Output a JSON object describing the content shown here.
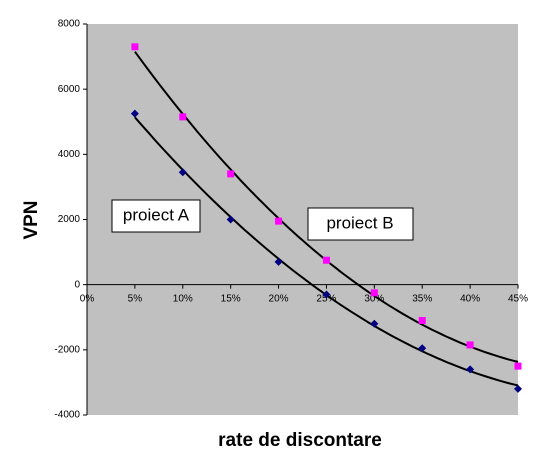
{
  "chart_data": {
    "type": "scatter",
    "xlabel": "rate de discontare",
    "ylabel": "VPN",
    "x": [
      5,
      10,
      15,
      20,
      25,
      30,
      35,
      40,
      45
    ],
    "series": [
      {
        "name": "proiect A",
        "color": "#000080",
        "marker": "diamond",
        "values": [
          5250,
          3450,
          2000,
          700,
          -300,
          -1200,
          -1950,
          -2600,
          -3200
        ]
      },
      {
        "name": "proiect B",
        "color": "#ff00ff",
        "marker": "square",
        "values": [
          7300,
          5150,
          3400,
          1950,
          750,
          -250,
          -1100,
          -1850,
          -2500
        ]
      }
    ],
    "trendline": "polynomial",
    "xlim": [
      0,
      45
    ],
    "xticks": [
      {
        "value": 0,
        "label": "0%"
      },
      {
        "value": 5,
        "label": "5%"
      },
      {
        "value": 10,
        "label": "10%"
      },
      {
        "value": 15,
        "label": "15%"
      },
      {
        "value": 20,
        "label": "20%"
      },
      {
        "value": 25,
        "label": "25%"
      },
      {
        "value": 30,
        "label": "30%"
      },
      {
        "value": 35,
        "label": "35%"
      },
      {
        "value": 40,
        "label": "40%"
      },
      {
        "value": 45,
        "label": "45%"
      }
    ],
    "ylim": [
      -4000,
      8000
    ],
    "yticks": [
      -4000,
      -2000,
      0,
      2000,
      4000,
      6000,
      8000
    ],
    "grid": false
  }
}
